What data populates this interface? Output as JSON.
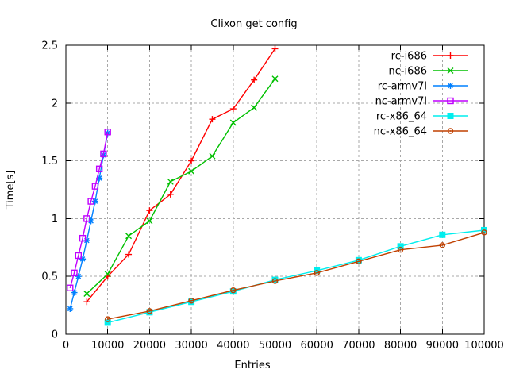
{
  "chart_data": {
    "type": "line",
    "title": "Clixon get config",
    "xlabel": "Entries",
    "ylabel": "Time[s]",
    "xlim": [
      0,
      100000
    ],
    "ylim": [
      0,
      2.5
    ],
    "x_ticks": [
      0,
      10000,
      20000,
      30000,
      40000,
      50000,
      60000,
      70000,
      80000,
      90000,
      100000
    ],
    "y_ticks": [
      0,
      0.5,
      1,
      1.5,
      2,
      2.5
    ],
    "grid": true,
    "grid_color": "#a8a8a8",
    "border_color": "#000000",
    "background": "#ffffff",
    "legend_position": "top-right-inside",
    "series": [
      {
        "name": "rc-i686",
        "color": "#ff0000",
        "marker": "plus",
        "x": [
          5000,
          10000,
          15000,
          20000,
          25000,
          30000,
          35000,
          40000,
          45000,
          50000
        ],
        "values": [
          0.28,
          0.5,
          0.69,
          1.07,
          1.21,
          1.5,
          1.86,
          1.95,
          2.2,
          2.47
        ]
      },
      {
        "name": "nc-i686",
        "color": "#00c000",
        "marker": "cross",
        "x": [
          5000,
          10000,
          15000,
          20000,
          25000,
          30000,
          35000,
          40000,
          45000,
          50000
        ],
        "values": [
          0.35,
          0.52,
          0.85,
          0.98,
          1.32,
          1.41,
          1.54,
          1.83,
          1.96,
          2.21
        ]
      },
      {
        "name": "rc-armv7l",
        "color": "#0080ff",
        "marker": "asterisk",
        "x": [
          1000,
          2000,
          3000,
          4000,
          5000,
          6000,
          7000,
          8000,
          9000,
          10000
        ],
        "values": [
          0.22,
          0.36,
          0.5,
          0.65,
          0.81,
          0.98,
          1.15,
          1.35,
          1.55,
          1.74
        ]
      },
      {
        "name": "nc-armv7l",
        "color": "#c000ff",
        "marker": "open-square",
        "x": [
          1000,
          2000,
          3000,
          4000,
          5000,
          6000,
          7000,
          8000,
          9000,
          10000
        ],
        "values": [
          0.4,
          0.53,
          0.68,
          0.83,
          1.0,
          1.15,
          1.28,
          1.43,
          1.56,
          1.75
        ]
      },
      {
        "name": "rc-x86_64",
        "color": "#00eeee",
        "marker": "filled-square",
        "x": [
          10000,
          20000,
          30000,
          40000,
          50000,
          60000,
          70000,
          80000,
          90000,
          100000
        ],
        "values": [
          0.1,
          0.19,
          0.28,
          0.37,
          0.47,
          0.55,
          0.64,
          0.76,
          0.86,
          0.9
        ]
      },
      {
        "name": "nc-x86_64",
        "color": "#c04000",
        "marker": "open-circle",
        "x": [
          10000,
          20000,
          30000,
          40000,
          50000,
          60000,
          70000,
          80000,
          90000,
          100000
        ],
        "values": [
          0.13,
          0.2,
          0.29,
          0.38,
          0.46,
          0.53,
          0.63,
          0.73,
          0.77,
          0.88
        ]
      }
    ]
  }
}
